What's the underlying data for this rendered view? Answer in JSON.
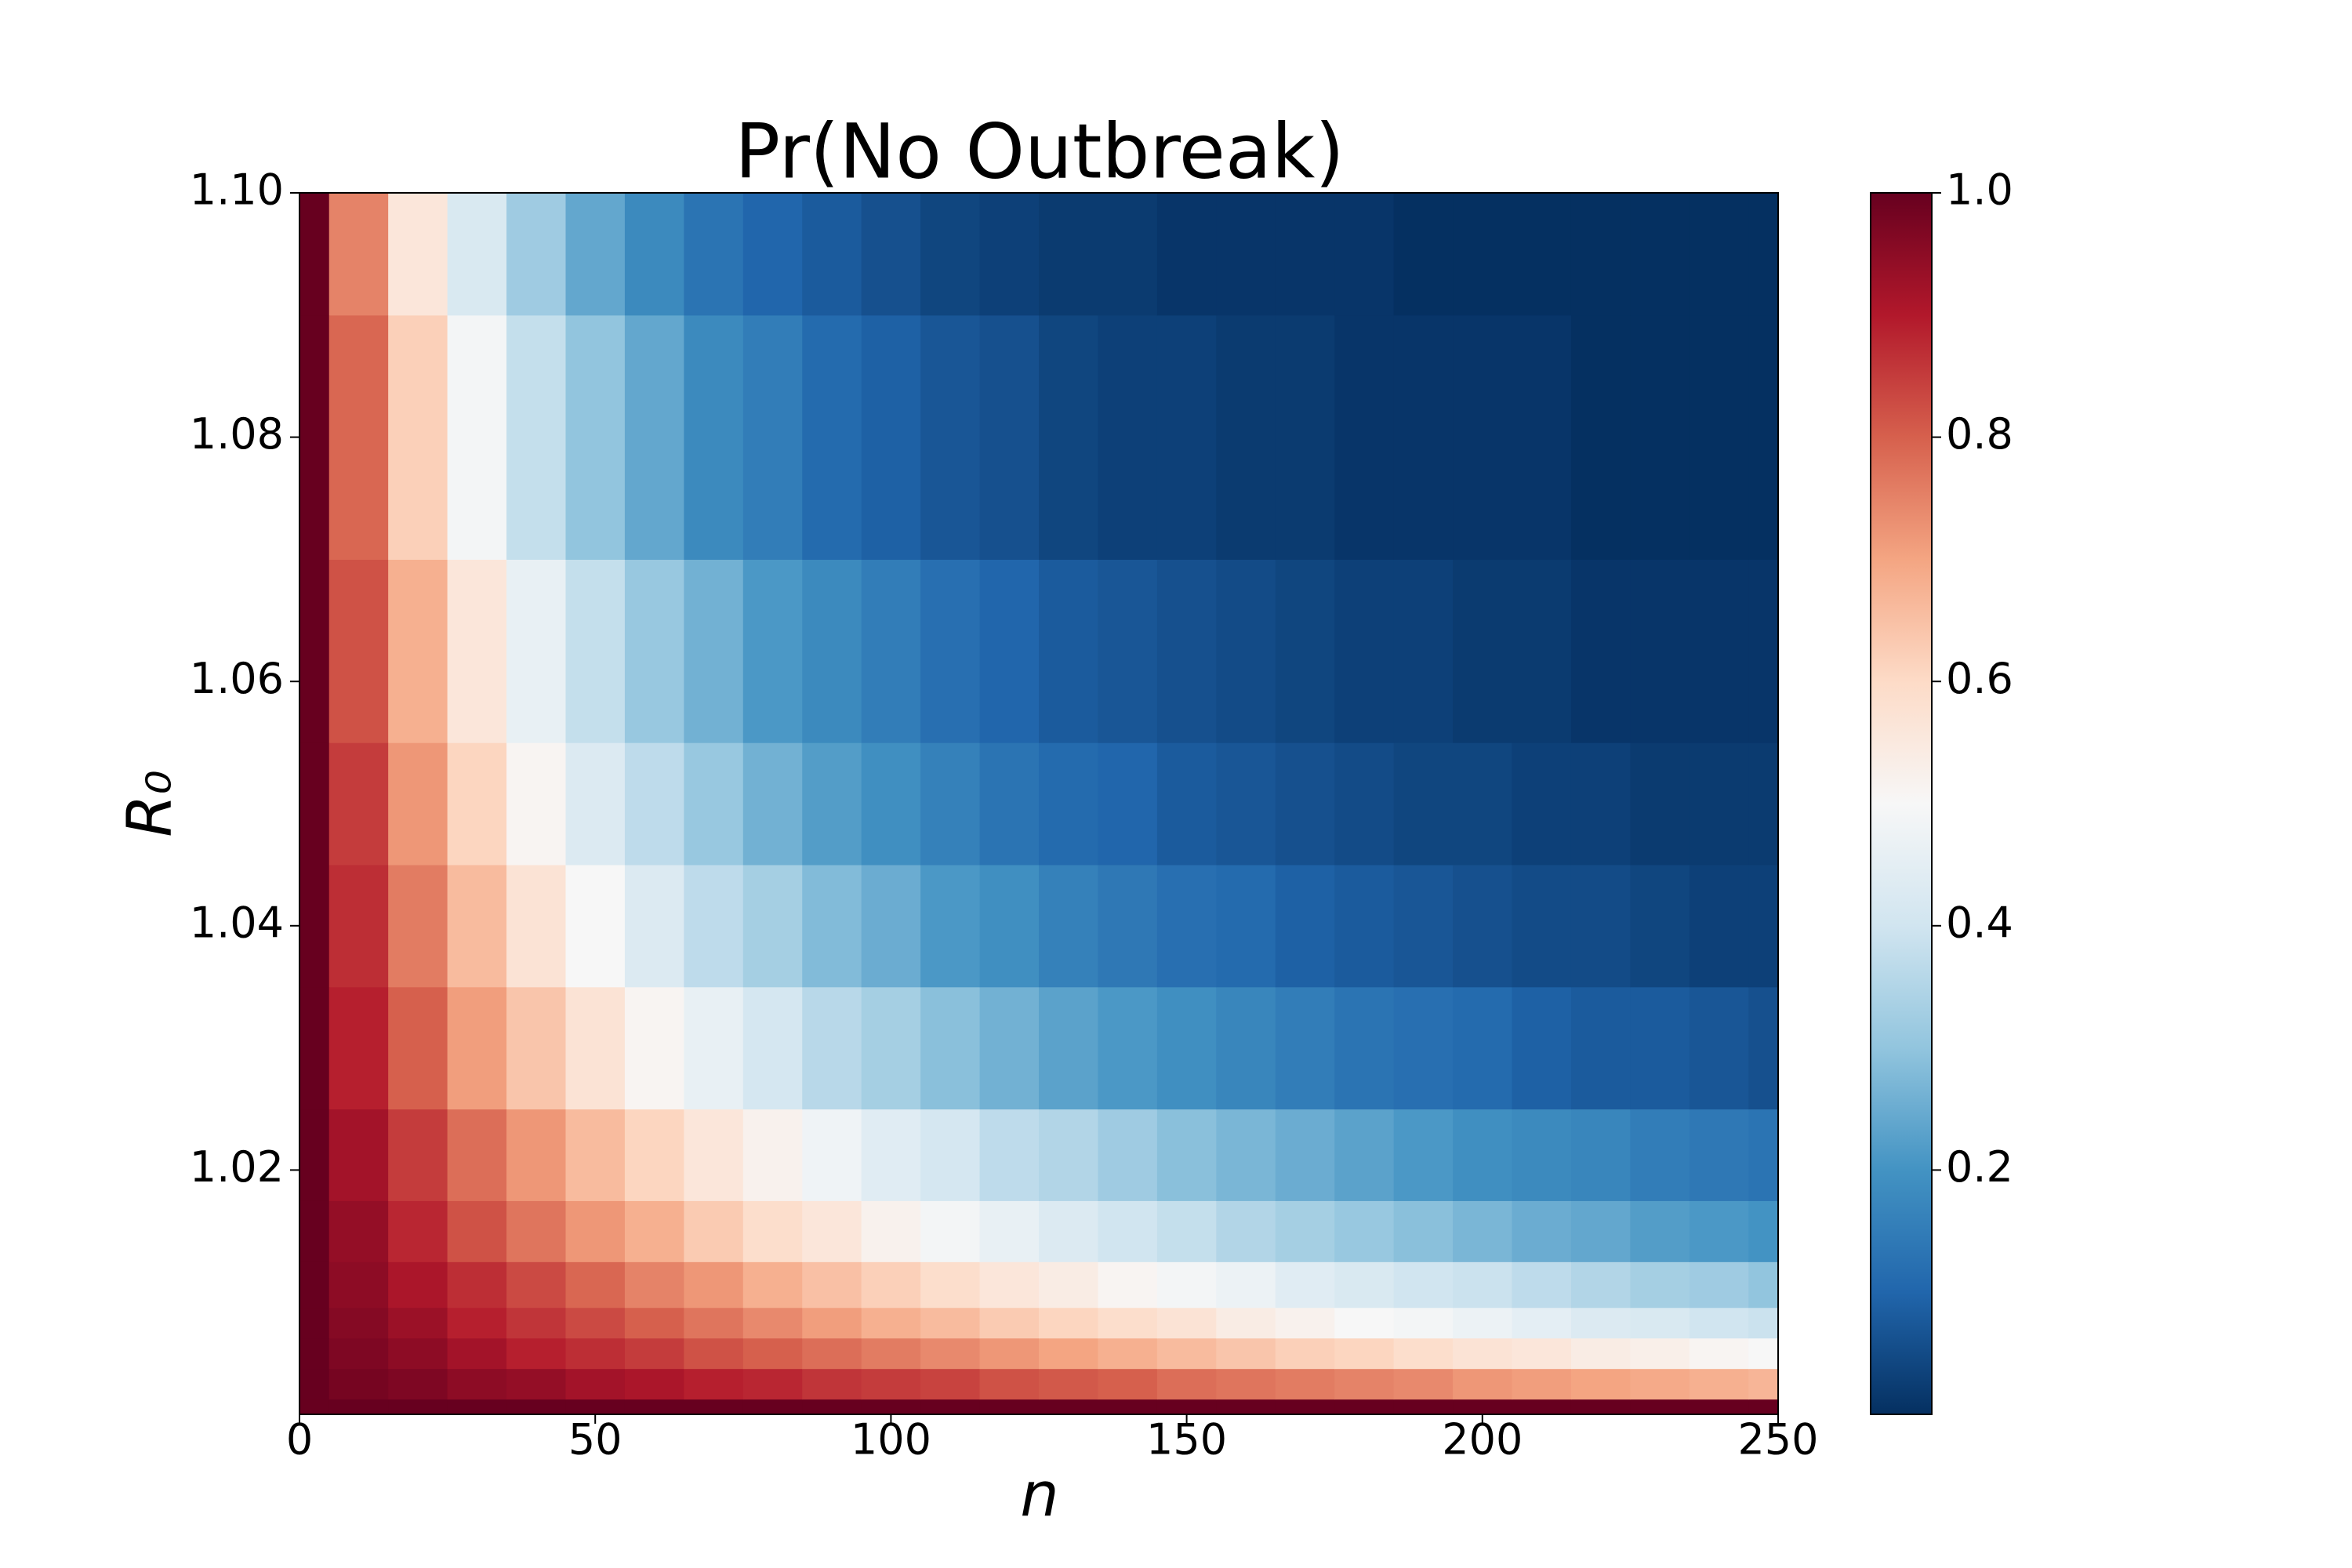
{
  "chart_data": {
    "type": "heatmap",
    "title": "Pr(No Outbreak)",
    "xlabel": "n",
    "ylabel": "R₀",
    "x": [
      0,
      10,
      20,
      30,
      40,
      50,
      60,
      70,
      80,
      90,
      100,
      110,
      120,
      130,
      140,
      150,
      160,
      170,
      180,
      190,
      200,
      210,
      220,
      230,
      240,
      250
    ],
    "y": [
      1.0,
      1.0025,
      1.005,
      1.0075,
      1.01,
      1.015,
      1.02,
      1.03,
      1.04,
      1.05,
      1.06,
      1.08,
      1.1
    ],
    "z": [
      [
        1,
        1,
        1,
        1,
        1,
        1,
        1,
        1,
        1,
        1,
        1,
        1,
        1,
        1,
        1,
        1,
        1,
        1,
        1,
        1,
        1,
        1,
        1,
        1,
        1,
        1
      ],
      [
        1,
        0.98,
        0.97,
        0.95,
        0.94,
        0.92,
        0.91,
        0.89,
        0.88,
        0.86,
        0.85,
        0.84,
        0.82,
        0.81,
        0.8,
        0.78,
        0.77,
        0.76,
        0.75,
        0.74,
        0.72,
        0.71,
        0.7,
        0.69,
        0.68,
        0.67
      ],
      [
        1,
        0.97,
        0.95,
        0.92,
        0.89,
        0.87,
        0.85,
        0.82,
        0.8,
        0.78,
        0.76,
        0.74,
        0.72,
        0.7,
        0.68,
        0.66,
        0.64,
        0.62,
        0.61,
        0.59,
        0.57,
        0.56,
        0.54,
        0.53,
        0.51,
        0.5
      ],
      [
        1,
        0.96,
        0.93,
        0.89,
        0.86,
        0.83,
        0.8,
        0.77,
        0.74,
        0.71,
        0.68,
        0.66,
        0.63,
        0.61,
        0.59,
        0.57,
        0.54,
        0.52,
        0.5,
        0.49,
        0.47,
        0.45,
        0.43,
        0.42,
        0.4,
        0.39
      ],
      [
        1,
        0.95,
        0.91,
        0.87,
        0.83,
        0.79,
        0.75,
        0.72,
        0.68,
        0.65,
        0.62,
        0.59,
        0.56,
        0.54,
        0.51,
        0.49,
        0.47,
        0.44,
        0.42,
        0.4,
        0.39,
        0.37,
        0.35,
        0.33,
        0.32,
        0.3
      ],
      [
        1,
        0.94,
        0.88,
        0.82,
        0.77,
        0.72,
        0.68,
        0.63,
        0.59,
        0.56,
        0.52,
        0.49,
        0.46,
        0.43,
        0.4,
        0.38,
        0.35,
        0.33,
        0.31,
        0.29,
        0.27,
        0.25,
        0.24,
        0.22,
        0.21,
        0.2
      ],
      [
        1,
        0.92,
        0.85,
        0.78,
        0.72,
        0.66,
        0.61,
        0.56,
        0.52,
        0.48,
        0.44,
        0.41,
        0.37,
        0.35,
        0.32,
        0.29,
        0.27,
        0.25,
        0.23,
        0.21,
        0.19,
        0.18,
        0.17,
        0.15,
        0.14,
        0.13
      ],
      [
        1,
        0.89,
        0.8,
        0.71,
        0.64,
        0.57,
        0.51,
        0.46,
        0.41,
        0.36,
        0.33,
        0.29,
        0.26,
        0.23,
        0.21,
        0.19,
        0.17,
        0.15,
        0.13,
        0.12,
        0.11,
        0.09,
        0.08,
        0.08,
        0.07,
        0.06
      ],
      [
        1,
        0.87,
        0.76,
        0.66,
        0.57,
        0.5,
        0.43,
        0.37,
        0.33,
        0.28,
        0.25,
        0.21,
        0.19,
        0.16,
        0.14,
        0.12,
        0.11,
        0.09,
        0.08,
        0.07,
        0.06,
        0.05,
        0.05,
        0.04,
        0.03,
        0.03
      ],
      [
        1,
        0.85,
        0.72,
        0.61,
        0.51,
        0.43,
        0.37,
        0.31,
        0.26,
        0.22,
        0.19,
        0.16,
        0.13,
        0.11,
        0.1,
        0.08,
        0.07,
        0.06,
        0.05,
        0.04,
        0.04,
        0.03,
        0.03,
        0.02,
        0.02,
        0.02
      ],
      [
        1,
        0.82,
        0.68,
        0.56,
        0.46,
        0.38,
        0.31,
        0.26,
        0.21,
        0.18,
        0.15,
        0.12,
        0.1,
        0.08,
        0.07,
        0.06,
        0.05,
        0.04,
        0.03,
        0.03,
        0.02,
        0.02,
        0.01,
        0.01,
        0.01,
        0.01
      ],
      [
        1,
        0.79,
        0.62,
        0.49,
        0.38,
        0.3,
        0.24,
        0.18,
        0.15,
        0.11,
        0.09,
        0.07,
        0.06,
        0.04,
        0.03,
        0.03,
        0.02,
        0.02,
        0.01,
        0.01,
        0.01,
        0.01,
        0,
        0,
        0,
        0
      ],
      [
        1,
        0.75,
        0.56,
        0.42,
        0.32,
        0.24,
        0.18,
        0.13,
        0.1,
        0.08,
        0.06,
        0.04,
        0.03,
        0.02,
        0.02,
        0.01,
        0.01,
        0.01,
        0.01,
        0,
        0,
        0,
        0,
        0,
        0,
        0
      ]
    ],
    "xlim": [
      0,
      250
    ],
    "ylim": [
      1,
      1.1
    ],
    "xticks": [
      0,
      50,
      100,
      150,
      200,
      250
    ],
    "yticks": [
      1.02,
      1.04,
      1.06,
      1.08,
      {
        "value": 1.1,
        "label": "1.10"
      }
    ],
    "clim": [
      0,
      1
    ],
    "cticks": [
      0.2,
      0.4,
      0.6,
      0.8,
      {
        "value": 1,
        "label": "1.0"
      }
    ],
    "colormap": [
      "#053061",
      "#2166ac",
      "#4393c3",
      "#92c5de",
      "#d1e5f0",
      "#f7f7f7",
      "#fddbc7",
      "#f4a582",
      "#d6604d",
      "#b2182b",
      "#67001f"
    ]
  }
}
